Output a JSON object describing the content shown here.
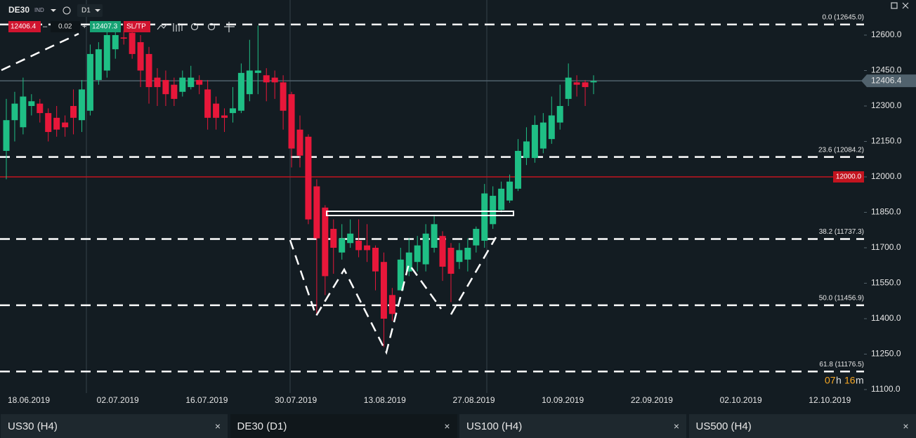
{
  "header": {
    "symbol": "DE30",
    "market": "IND",
    "timeframe": "D1",
    "sell": "12406.4",
    "minus": "–",
    "lot": "0.02",
    "plus": "+",
    "buy": "12407.3",
    "sltp": "SL/TP"
  },
  "chart_data": {
    "type": "candlestick",
    "xticks": [
      "18.06.2019",
      "02.07.2019",
      "16.07.2019",
      "30.07.2019",
      "13.08.2019",
      "27.08.2019",
      "10.09.2019",
      "22.09.2019",
      "02.10.2019",
      "12.10.2019"
    ],
    "open": [
      12110,
      12240,
      12210,
      12300,
      12310,
      12270,
      12250,
      12230,
      12300,
      12240,
      12280,
      12410,
      12450,
      12540,
      12590,
      12610,
      12570,
      12520,
      12420,
      12410,
      12390,
      12360,
      12380,
      12410,
      12370,
      12310,
      12260,
      12270,
      12280,
      12350,
      12440,
      12430,
      12420,
      12400,
      12350,
      12200,
      12170,
      11960,
      11870,
      11780,
      11680,
      11720,
      11730,
      11710,
      11700,
      11640,
      11500,
      11520,
      11600,
      11640,
      11630,
      11700,
      11750,
      11700,
      11640,
      11650,
      11710,
      11730,
      11800,
      11860,
      11900,
      11950,
      12080,
      12080,
      12120,
      12160,
      12230,
      12330,
      12400,
      12400,
      12400
    ],
    "high": [
      12330,
      12360,
      12420,
      12350,
      12330,
      12290,
      12300,
      12260,
      12370,
      12410,
      12560,
      12570,
      12640,
      12640,
      12620,
      12630,
      12600,
      12550,
      12460,
      12450,
      12420,
      12450,
      12470,
      12430,
      12410,
      12340,
      12290,
      12380,
      12480,
      12580,
      12640,
      12460,
      12450,
      12430,
      12360,
      12260,
      12180,
      11990,
      11880,
      11820,
      11800,
      11820,
      11820,
      11800,
      11710,
      11680,
      11530,
      11700,
      11740,
      11750,
      11800,
      11840,
      11770,
      11720,
      11720,
      11740,
      11790,
      11970,
      11960,
      11980,
      12010,
      12160,
      12210,
      12260,
      12270,
      12340,
      12390,
      12480,
      12430,
      12410,
      12430
    ],
    "low": [
      11990,
      12150,
      12180,
      12260,
      12230,
      12150,
      12170,
      12170,
      12180,
      12190,
      12260,
      12390,
      12420,
      12500,
      12560,
      12500,
      12380,
      12310,
      12300,
      12300,
      12300,
      12340,
      12370,
      12350,
      12200,
      12200,
      12190,
      12230,
      12270,
      12320,
      12350,
      12320,
      12330,
      12200,
      12040,
      12040,
      11800,
      11420,
      11500,
      11590,
      11650,
      11700,
      11660,
      11640,
      11520,
      11280,
      11390,
      11520,
      11580,
      11600,
      11600,
      11680,
      11560,
      11470,
      11610,
      11600,
      11680,
      11700,
      11780,
      11850,
      11890,
      11940,
      12050,
      12060,
      12100,
      12140,
      12200,
      12300,
      12340,
      12300,
      12350
    ],
    "close": [
      12240,
      12310,
      12340,
      12320,
      12270,
      12190,
      12200,
      12210,
      12250,
      12370,
      12520,
      12540,
      12600,
      12600,
      12585,
      12520,
      12450,
      12380,
      12380,
      12350,
      12330,
      12420,
      12420,
      12390,
      12250,
      12250,
      12250,
      12290,
      12440,
      12450,
      12450,
      12400,
      12400,
      12280,
      12120,
      12090,
      11820,
      11740,
      11580,
      11700,
      11740,
      11760,
      11690,
      11690,
      11600,
      11400,
      11420,
      11650,
      11680,
      11710,
      11760,
      11800,
      11620,
      11590,
      11690,
      11700,
      11780,
      11930,
      11920,
      11950,
      11980,
      12110,
      12150,
      12220,
      12230,
      12260,
      12300,
      12420,
      12390,
      12380,
      12406
    ],
    "up_color": "#1fbf85",
    "down_color": "#e8173a",
    "ylim": [
      11002,
      12748.5
    ],
    "yticks": [
      {
        "value": 11100,
        "label": "11100.0"
      },
      {
        "value": 11250,
        "label": "11250.0"
      },
      {
        "value": 11400,
        "label": "11400.0"
      },
      {
        "value": 11550,
        "label": "11550.0"
      },
      {
        "value": 11700,
        "label": "11700.0"
      },
      {
        "value": 11850,
        "label": "11850.0"
      },
      {
        "value": 12000,
        "label": "12000.0"
      },
      {
        "value": 12150,
        "label": "12150.0"
      },
      {
        "value": 12300,
        "label": "12300.0"
      },
      {
        "value": 12450,
        "label": "12450.0"
      },
      {
        "value": 12600,
        "label": "12600.0"
      }
    ],
    "fib_levels": [
      {
        "value": 12645.0,
        "label": "0.0 (12645.0)"
      },
      {
        "value": 12084.2,
        "label": "23.6 (12084.2)"
      },
      {
        "value": 11737.3,
        "label": "38.2 (11737.3)"
      },
      {
        "value": 11456.9,
        "label": "50.0 (11456.9)"
      },
      {
        "value": 11176.5,
        "label": "61.8 (11176.5)"
      }
    ],
    "price_lines": [
      {
        "value": 12406.4,
        "label": "12406.4",
        "color": "#51626d"
      },
      {
        "value": 12000,
        "label": "12000.0",
        "color": "#c3141f"
      }
    ]
  },
  "timer": {
    "hours": "07",
    "h": "h",
    "minutes": "16",
    "m": "m"
  },
  "tabs": [
    {
      "title": "US30 (H4)",
      "close": "×"
    },
    {
      "title": "DE30 (D1)",
      "close": "×"
    },
    {
      "title": "US100 (H4)",
      "close": "×"
    },
    {
      "title": "US500 (H4)",
      "close": "×"
    }
  ]
}
